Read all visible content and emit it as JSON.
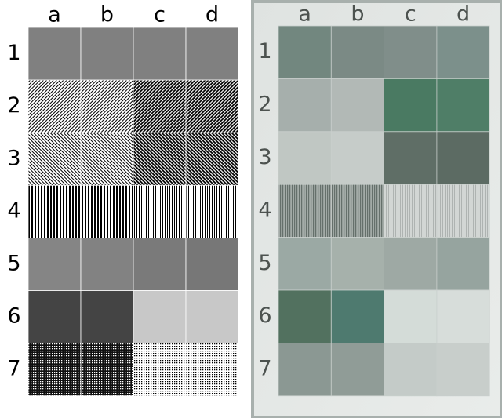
{
  "left": {
    "columns": [
      "a",
      "b",
      "c",
      "d"
    ],
    "rows": [
      "1",
      "2",
      "3",
      "4",
      "5",
      "6",
      "7"
    ]
  },
  "right": {
    "columns": [
      "a",
      "b",
      "c",
      "d"
    ],
    "rows": [
      "1",
      "2",
      "3",
      "4",
      "5",
      "6",
      "7"
    ]
  }
}
